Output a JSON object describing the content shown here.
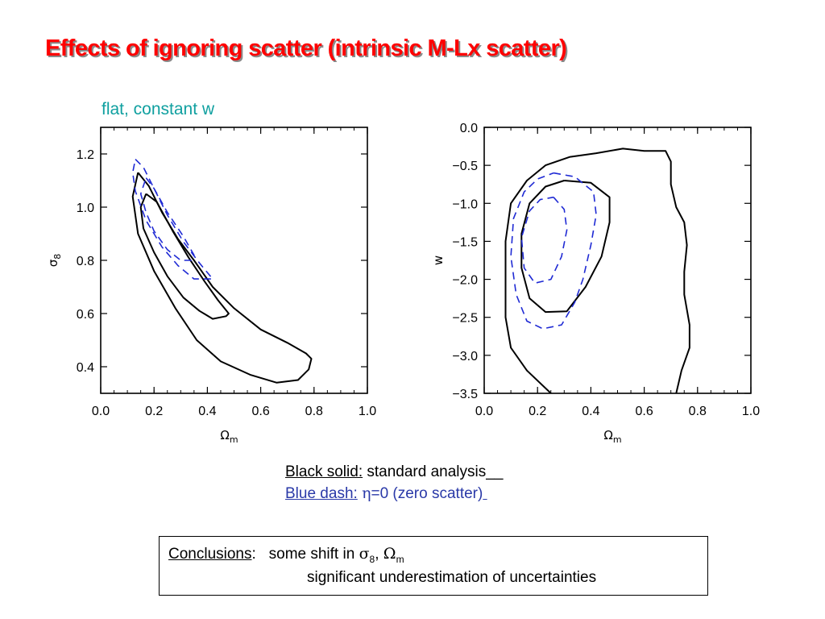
{
  "slide": {
    "title": "Effects of ignoring scatter (intrinsic M-Lx scatter)",
    "subtitle": "flat, constant w"
  },
  "legend": {
    "black_label": "Black solid:",
    "black_text": " standard analysis__",
    "blue_label": "Blue dash:",
    "blue_symbol": "η",
    "blue_text": "=0 (zero scatter)"
  },
  "conclusions": {
    "label": "Conclusions",
    "colon": ":",
    "line1_text": "some shift in ",
    "sigma": "σ",
    "sigma_sub": "8",
    "comma": ", ",
    "omega": "Ω",
    "omega_sub": "m",
    "line2": "significant underestimation of uncertainties"
  },
  "chart_data": [
    {
      "type": "contour",
      "xlabel": "Ωm",
      "ylabel": "σ8",
      "xlim": [
        0.0,
        1.0
      ],
      "ylim": [
        0.3,
        1.3
      ],
      "xticks": [
        "0.0",
        "0.2",
        "0.4",
        "0.6",
        "0.8",
        "1.0"
      ],
      "yticks": [
        "0.4",
        "0.6",
        "0.8",
        "1.0",
        "1.2"
      ],
      "ytick_values": [
        0.4,
        0.6,
        0.8,
        1.0,
        1.2
      ],
      "series": [
        {
          "style": "solid",
          "color": "#000000",
          "points": [
            [
              0.14,
              1.13
            ],
            [
              0.18,
              1.08
            ],
            [
              0.23,
              0.98
            ],
            [
              0.29,
              0.88
            ],
            [
              0.35,
              0.8
            ],
            [
              0.42,
              0.7
            ],
            [
              0.5,
              0.62
            ],
            [
              0.6,
              0.54
            ],
            [
              0.7,
              0.49
            ],
            [
              0.77,
              0.45
            ],
            [
              0.79,
              0.43
            ],
            [
              0.78,
              0.39
            ],
            [
              0.74,
              0.35
            ],
            [
              0.66,
              0.34
            ],
            [
              0.56,
              0.37
            ],
            [
              0.45,
              0.42
            ],
            [
              0.36,
              0.5
            ],
            [
              0.28,
              0.62
            ],
            [
              0.2,
              0.76
            ],
            [
              0.14,
              0.9
            ],
            [
              0.12,
              1.04
            ],
            [
              0.14,
              1.13
            ]
          ]
        },
        {
          "style": "solid",
          "color": "#000000",
          "points": [
            [
              0.17,
              1.05
            ],
            [
              0.21,
              1.02
            ],
            [
              0.27,
              0.91
            ],
            [
              0.33,
              0.81
            ],
            [
              0.39,
              0.72
            ],
            [
              0.44,
              0.65
            ],
            [
              0.48,
              0.6
            ],
            [
              0.47,
              0.59
            ],
            [
              0.42,
              0.58
            ],
            [
              0.37,
              0.61
            ],
            [
              0.31,
              0.66
            ],
            [
              0.25,
              0.74
            ],
            [
              0.2,
              0.83
            ],
            [
              0.16,
              0.92
            ],
            [
              0.15,
              1.0
            ],
            [
              0.17,
              1.05
            ]
          ]
        },
        {
          "style": "dashed",
          "color": "#1f2ad4",
          "points": [
            [
              0.13,
              1.18
            ],
            [
              0.16,
              1.15
            ],
            [
              0.2,
              1.07
            ],
            [
              0.25,
              0.97
            ],
            [
              0.31,
              0.87
            ],
            [
              0.37,
              0.79
            ],
            [
              0.42,
              0.73
            ],
            [
              0.41,
              0.73
            ],
            [
              0.35,
              0.73
            ],
            [
              0.29,
              0.78
            ],
            [
              0.23,
              0.85
            ],
            [
              0.17,
              0.95
            ],
            [
              0.13,
              1.06
            ],
            [
              0.12,
              1.13
            ],
            [
              0.13,
              1.18
            ]
          ]
        },
        {
          "style": "dashed",
          "color": "#1f2ad4",
          "points": [
            [
              0.17,
              1.11
            ],
            [
              0.2,
              1.07
            ],
            [
              0.25,
              0.98
            ],
            [
              0.31,
              0.89
            ],
            [
              0.35,
              0.82
            ],
            [
              0.34,
              0.8
            ],
            [
              0.3,
              0.8
            ],
            [
              0.25,
              0.84
            ],
            [
              0.2,
              0.91
            ],
            [
              0.17,
              0.98
            ],
            [
              0.15,
              1.05
            ],
            [
              0.17,
              1.11
            ]
          ]
        }
      ]
    },
    {
      "type": "contour",
      "xlabel": "Ωm",
      "ylabel": "w",
      "xlim": [
        0.0,
        1.0
      ],
      "ylim": [
        -3.5,
        0.0
      ],
      "xticks": [
        "0.0",
        "0.2",
        "0.4",
        "0.6",
        "0.8",
        "1.0"
      ],
      "yticks": [
        "0.0",
        "−0.5",
        "−1.0",
        "−1.5",
        "−2.0",
        "−2.5",
        "−3.0",
        "−3.5"
      ],
      "ytick_values": [
        0.0,
        -0.5,
        -1.0,
        -1.5,
        -2.0,
        -2.5,
        -3.0,
        -3.5
      ],
      "series": [
        {
          "style": "solid",
          "color": "#000000",
          "points": [
            [
              0.25,
              -3.5
            ],
            [
              0.16,
              -3.2
            ],
            [
              0.1,
              -2.9
            ],
            [
              0.08,
              -2.5
            ],
            [
              0.08,
              -2.0
            ],
            [
              0.08,
              -1.5
            ],
            [
              0.1,
              -1.0
            ],
            [
              0.16,
              -0.7
            ],
            [
              0.23,
              -0.5
            ],
            [
              0.32,
              -0.39
            ],
            [
              0.42,
              -0.34
            ],
            [
              0.52,
              -0.28
            ],
            [
              0.6,
              -0.31
            ],
            [
              0.68,
              -0.31
            ],
            [
              0.7,
              -0.45
            ],
            [
              0.7,
              -0.75
            ],
            [
              0.72,
              -1.05
            ],
            [
              0.75,
              -1.25
            ],
            [
              0.76,
              -1.55
            ],
            [
              0.75,
              -1.9
            ],
            [
              0.75,
              -2.2
            ],
            [
              0.77,
              -2.6
            ],
            [
              0.77,
              -2.9
            ],
            [
              0.74,
              -3.2
            ],
            [
              0.72,
              -3.5
            ]
          ]
        },
        {
          "style": "solid",
          "color": "#000000",
          "points": [
            [
              0.3,
              -0.7
            ],
            [
              0.4,
              -0.73
            ],
            [
              0.47,
              -0.92
            ],
            [
              0.47,
              -1.25
            ],
            [
              0.44,
              -1.7
            ],
            [
              0.38,
              -2.1
            ],
            [
              0.31,
              -2.42
            ],
            [
              0.23,
              -2.43
            ],
            [
              0.17,
              -2.25
            ],
            [
              0.14,
              -1.85
            ],
            [
              0.14,
              -1.4
            ],
            [
              0.17,
              -1.0
            ],
            [
              0.23,
              -0.78
            ],
            [
              0.3,
              -0.7
            ]
          ]
        },
        {
          "style": "dashed",
          "color": "#1f2ad4",
          "points": [
            [
              0.26,
              -0.6
            ],
            [
              0.34,
              -0.65
            ],
            [
              0.41,
              -0.85
            ],
            [
              0.42,
              -1.15
            ],
            [
              0.4,
              -1.55
            ],
            [
              0.37,
              -2.0
            ],
            [
              0.34,
              -2.3
            ],
            [
              0.29,
              -2.6
            ],
            [
              0.22,
              -2.65
            ],
            [
              0.16,
              -2.55
            ],
            [
              0.12,
              -2.2
            ],
            [
              0.1,
              -1.7
            ],
            [
              0.11,
              -1.2
            ],
            [
              0.15,
              -0.85
            ],
            [
              0.2,
              -0.68
            ],
            [
              0.26,
              -0.6
            ]
          ]
        },
        {
          "style": "dashed",
          "color": "#1f2ad4",
          "points": [
            [
              0.26,
              -0.92
            ],
            [
              0.3,
              -1.08
            ],
            [
              0.31,
              -1.35
            ],
            [
              0.29,
              -1.7
            ],
            [
              0.25,
              -2.0
            ],
            [
              0.19,
              -2.05
            ],
            [
              0.15,
              -1.85
            ],
            [
              0.14,
              -1.45
            ],
            [
              0.17,
              -1.1
            ],
            [
              0.21,
              -0.95
            ],
            [
              0.26,
              -0.92
            ]
          ]
        }
      ]
    }
  ]
}
